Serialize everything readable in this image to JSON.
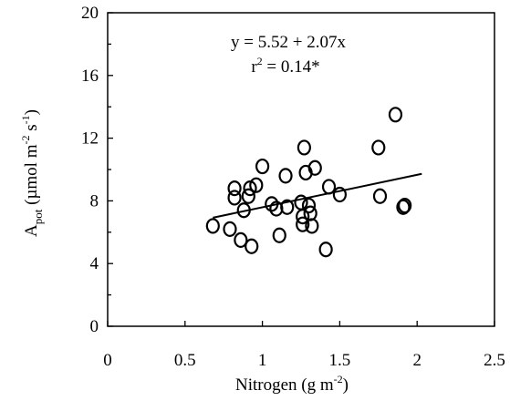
{
  "chart_data": {
    "type": "scatter",
    "xlabel": "Nitrogen (g  m",
    "xlabel_sup": "-2",
    "xlabel_close": ")",
    "ylabel": {
      "base": "A",
      "sub": "pot",
      "rest": " (µmol m",
      "sup1": "-2",
      "mid": " s",
      "sup2": "-1",
      "close": ")"
    },
    "xlim": [
      0,
      2.5
    ],
    "ylim": [
      0,
      20
    ],
    "x_ticks": [
      0,
      0.5,
      1,
      1.5,
      2,
      2.5
    ],
    "x_tick_labels": [
      "0",
      "0.5",
      "1",
      "1.5",
      "2",
      "2.5"
    ],
    "y_ticks": [
      0,
      4,
      8,
      12,
      16,
      20
    ],
    "y_tick_labels": [
      "0",
      "4",
      "8",
      "12",
      "16",
      "20"
    ],
    "grid": false,
    "regression": {
      "equation": "y = 5.52 + 2.07x",
      "r2_label": "r",
      "r2_sup": "2",
      "r2_value": " = 0.14*",
      "intercept": 5.52,
      "slope": 2.07,
      "x_range": [
        0.68,
        2.03
      ]
    },
    "points": [
      {
        "x": 0.68,
        "y": 6.4
      },
      {
        "x": 0.79,
        "y": 6.2
      },
      {
        "x": 0.82,
        "y": 8.8
      },
      {
        "x": 0.82,
        "y": 8.2
      },
      {
        "x": 0.86,
        "y": 5.5
      },
      {
        "x": 0.88,
        "y": 7.4
      },
      {
        "x": 0.91,
        "y": 8.3
      },
      {
        "x": 0.92,
        "y": 8.8
      },
      {
        "x": 0.93,
        "y": 5.1
      },
      {
        "x": 0.96,
        "y": 9.0
      },
      {
        "x": 1.0,
        "y": 10.2
      },
      {
        "x": 1.06,
        "y": 7.8
      },
      {
        "x": 1.09,
        "y": 7.5
      },
      {
        "x": 1.11,
        "y": 5.8
      },
      {
        "x": 1.15,
        "y": 9.6
      },
      {
        "x": 1.16,
        "y": 7.6
      },
      {
        "x": 1.25,
        "y": 7.9
      },
      {
        "x": 1.26,
        "y": 6.5
      },
      {
        "x": 1.26,
        "y": 7.0
      },
      {
        "x": 1.27,
        "y": 11.4
      },
      {
        "x": 1.28,
        "y": 9.8
      },
      {
        "x": 1.3,
        "y": 7.7
      },
      {
        "x": 1.31,
        "y": 7.2
      },
      {
        "x": 1.32,
        "y": 6.4
      },
      {
        "x": 1.34,
        "y": 10.1
      },
      {
        "x": 1.41,
        "y": 4.9
      },
      {
        "x": 1.43,
        "y": 8.9
      },
      {
        "x": 1.5,
        "y": 8.4
      },
      {
        "x": 1.75,
        "y": 11.4
      },
      {
        "x": 1.76,
        "y": 8.3
      },
      {
        "x": 1.86,
        "y": 13.5
      },
      {
        "x": 1.91,
        "y": 7.6
      },
      {
        "x": 1.92,
        "y": 7.7
      }
    ]
  }
}
